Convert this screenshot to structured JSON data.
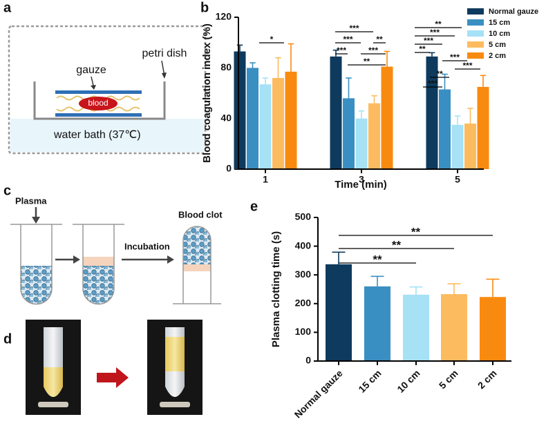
{
  "panel_labels": [
    "a",
    "b",
    "c",
    "d",
    "e"
  ],
  "diagram_a": {
    "gauze": "gauze",
    "blood": "blood",
    "petri_dish": "petri dish",
    "water_bath": "water bath (37℃)"
  },
  "diagram_c": {
    "plasma": "Plasma",
    "incubation": "Incubation",
    "blood_clot": "Blood clot"
  },
  "chart_data": [
    {
      "type": "bar",
      "x_label": "Time (min)",
      "y_label": "Blood coagulation index (%)",
      "categories": [
        "1",
        "3",
        "5"
      ],
      "series": [
        {
          "name": "Normal gauze",
          "color": "#0e3a5e",
          "values": [
            93,
            89,
            89
          ],
          "errors": [
            5,
            5,
            3
          ]
        },
        {
          "name": "15 cm",
          "color": "#3a8fc2",
          "values": [
            80,
            56,
            63
          ],
          "errors": [
            4,
            16,
            12
          ]
        },
        {
          "name": "10 cm",
          "color": "#a6e1f6",
          "values": [
            67,
            40,
            35
          ],
          "errors": [
            5,
            6,
            7
          ]
        },
        {
          "name": "5 cm",
          "color": "#fdbb60",
          "values": [
            72,
            52,
            36
          ],
          "errors": [
            16,
            6,
            12
          ]
        },
        {
          "name": "2 cm",
          "color": "#f98a10",
          "values": [
            77,
            81,
            65
          ],
          "errors": [
            22,
            12,
            9
          ]
        }
      ],
      "ylim": [
        0,
        120
      ],
      "yticks": [
        0,
        40,
        80,
        120
      ],
      "annotations": [
        "*",
        "***",
        "***",
        "**",
        "***",
        "***",
        "**",
        "**",
        "***",
        "***",
        "**",
        "***",
        "***",
        "**",
        "***"
      ]
    },
    {
      "type": "bar",
      "y_label": "Plasma clotting time (s)",
      "categories": [
        "Normal gauze",
        "15 cm",
        "10 cm",
        "5 cm",
        "2 cm"
      ],
      "values": [
        337,
        260,
        231,
        233,
        223
      ],
      "errors": [
        42,
        35,
        27,
        36,
        62
      ],
      "colors": [
        "#0e3a5e",
        "#3a8fc2",
        "#a6e1f6",
        "#fdbb60",
        "#f98a10"
      ],
      "ylim": [
        0,
        500
      ],
      "yticks": [
        0,
        100,
        200,
        300,
        400,
        500
      ],
      "annotations": [
        "**",
        "**",
        "**"
      ]
    }
  ]
}
